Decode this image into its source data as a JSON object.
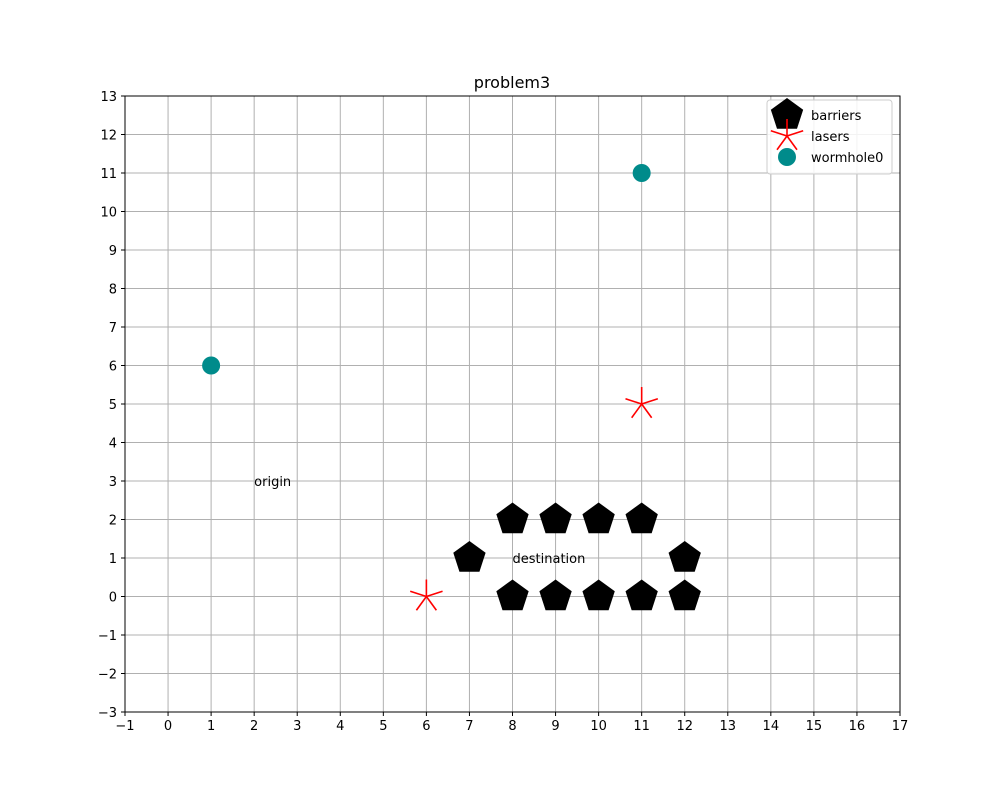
{
  "chart_data": {
    "type": "scatter",
    "title": "problem3",
    "xlabel": "",
    "ylabel": "",
    "xlim": [
      -1,
      17
    ],
    "ylim": [
      -3,
      13
    ],
    "xticks": [
      -1,
      0,
      1,
      2,
      3,
      4,
      5,
      6,
      7,
      8,
      9,
      10,
      11,
      12,
      13,
      14,
      15,
      16,
      17
    ],
    "yticks": [
      -3,
      -2,
      -1,
      0,
      1,
      2,
      3,
      4,
      5,
      6,
      7,
      8,
      9,
      10,
      11,
      12,
      13
    ],
    "grid": true,
    "legend_position": "top-right",
    "series": [
      {
        "name": "barriers",
        "marker": "pentagon",
        "color": "#000000",
        "points": [
          [
            8,
            2
          ],
          [
            9,
            2
          ],
          [
            10,
            2
          ],
          [
            11,
            2
          ],
          [
            7,
            1
          ],
          [
            12,
            1
          ],
          [
            8,
            0
          ],
          [
            9,
            0
          ],
          [
            10,
            0
          ],
          [
            11,
            0
          ],
          [
            12,
            0
          ]
        ]
      },
      {
        "name": "lasers",
        "marker": "star",
        "color": "#ff0000",
        "points": [
          [
            11,
            5
          ],
          [
            6,
            0
          ]
        ]
      },
      {
        "name": "wormhole0",
        "marker": "circle",
        "color": "#008b8b",
        "points": [
          [
            1,
            6
          ],
          [
            11,
            11
          ]
        ]
      }
    ],
    "annotations": [
      {
        "text": "origin",
        "x": 2,
        "y": 3
      },
      {
        "text": "destination",
        "x": 8,
        "y": 1
      }
    ]
  }
}
